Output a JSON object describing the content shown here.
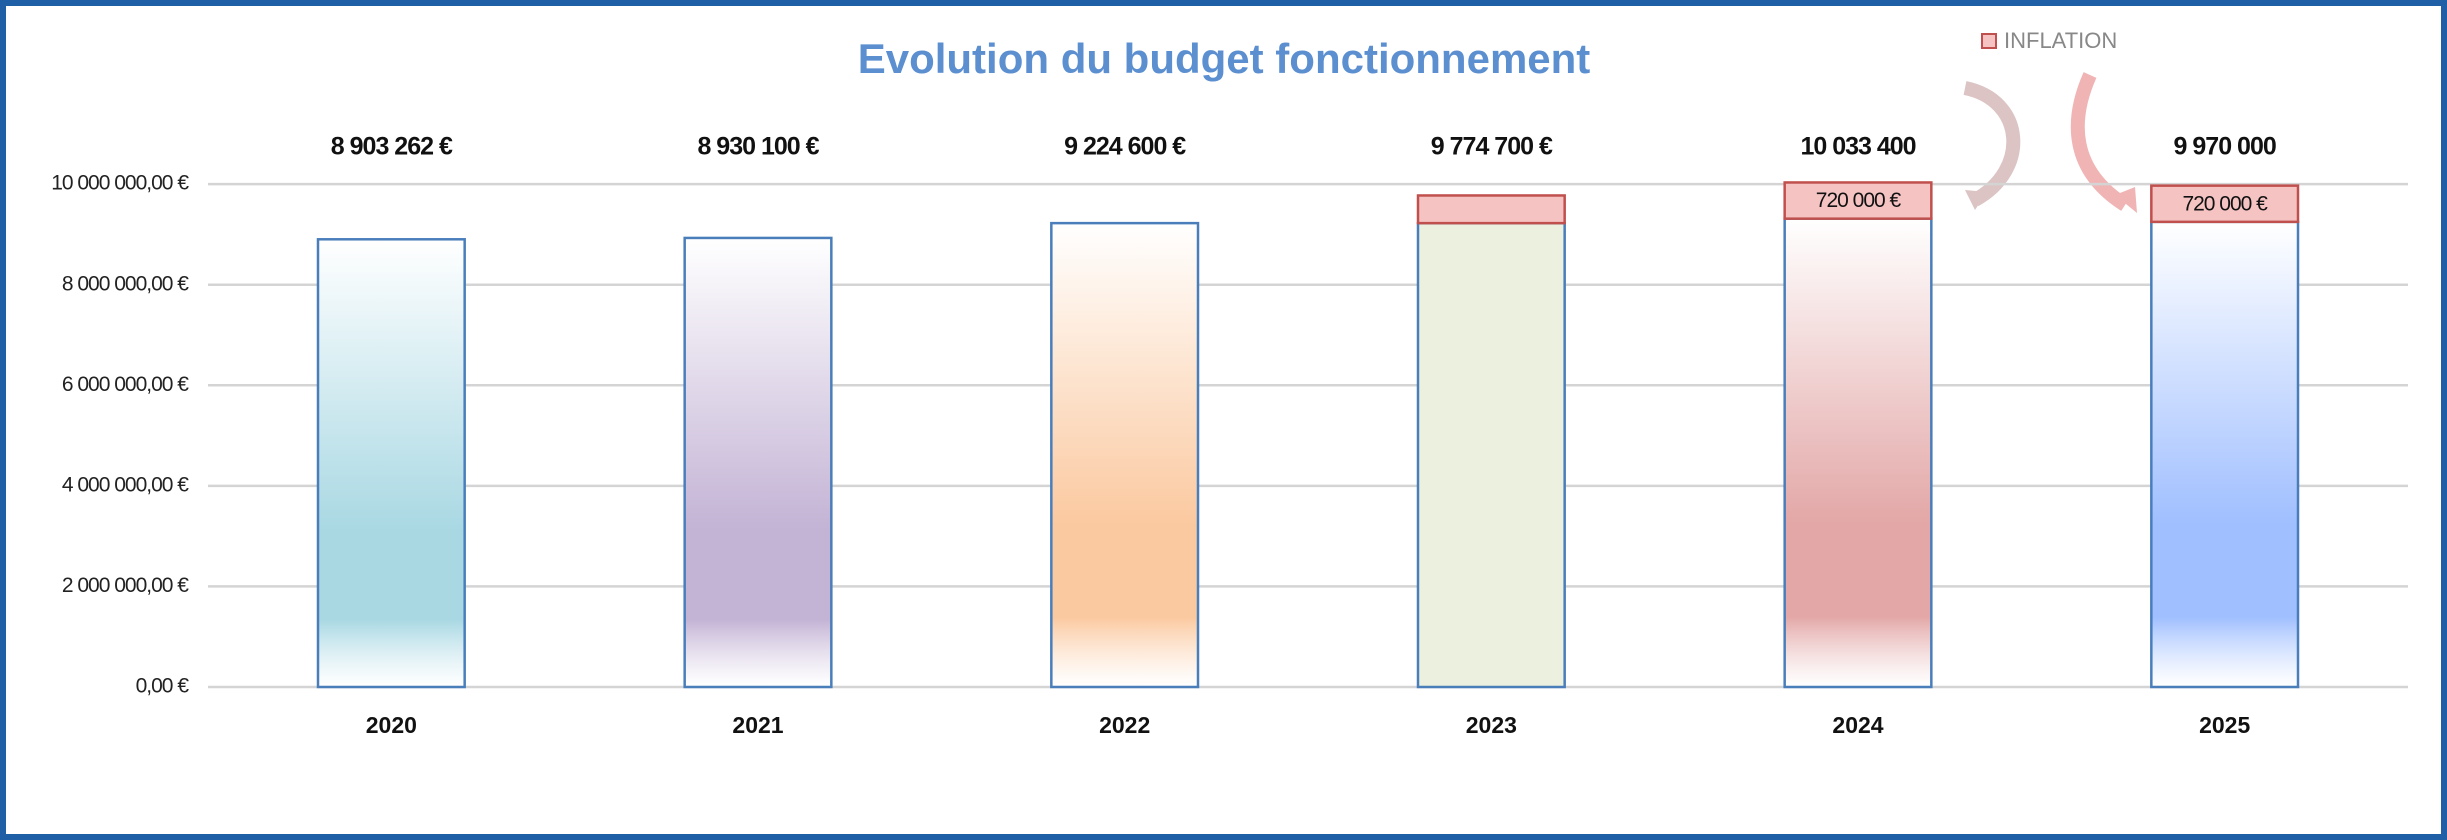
{
  "chart_data": {
    "type": "stacked_bar",
    "title": "Evolution  du budget fonctionnement",
    "categories": [
      "2020",
      "2021",
      "2022",
      "2023",
      "2024",
      "2025"
    ],
    "series": [
      {
        "colors": [
          "#a9d8e3",
          "#c3b3d5",
          "#fbc9a0",
          "#ebf1de",
          "#e3a7a7",
          "#a0bfff"
        ],
        "values": [
          8903262,
          8930100,
          9224600,
          9224600,
          9313400,
          9250000
        ]
      },
      {
        "name": "INFLATION",
        "color": "#f6c3c3",
        "values": [
          null,
          null,
          null,
          550100,
          720000,
          720000
        ],
        "value_labels": [
          null,
          null,
          null,
          null,
          "720 000 €",
          "720 000 €"
        ]
      }
    ],
    "total_labels": [
      "8 903 262 €",
      "8 930 100 €",
      "9 224 600 €",
      "9 774 700 €",
      "10 033 400",
      "9 970 000"
    ],
    "ylim": [
      0,
      10500000
    ],
    "yticks": [
      {
        "value": 0,
        "label": "0,00 €"
      },
      {
        "value": 2000000,
        "label": "2 000 000,00 €"
      },
      {
        "value": 4000000,
        "label": "4 000 000,00 €"
      },
      {
        "value": 6000000,
        "label": "6 000 000,00 €"
      },
      {
        "value": 8000000,
        "label": "8 000 000,00 €"
      },
      {
        "value": 10000000,
        "label": "10 000 000,00 €"
      }
    ],
    "grid": true,
    "legend": "top-right"
  }
}
